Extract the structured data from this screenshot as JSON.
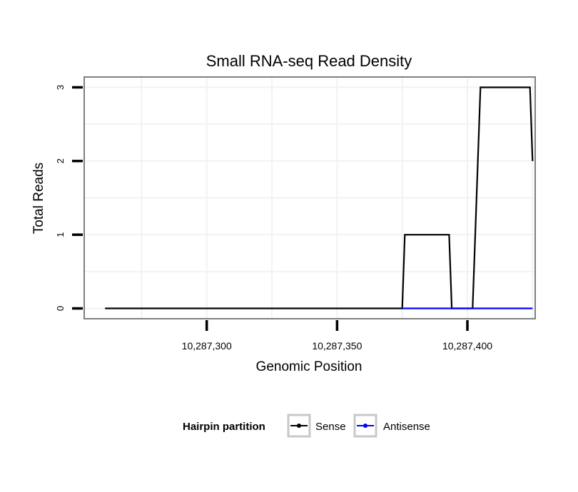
{
  "chart_data": {
    "type": "line",
    "title": "Small RNA-seq Read Density",
    "xlabel": "Genomic Position",
    "ylabel": "Total Reads",
    "xlim": [
      10287253,
      10287426
    ],
    "ylim": [
      -0.14,
      3.14
    ],
    "x_ticks": [
      10287300,
      10287350,
      10287400
    ],
    "x_tick_labels": [
      "10,287,300",
      "10,287,350",
      "10,287,400"
    ],
    "y_ticks": [
      0,
      1,
      2,
      3
    ],
    "y_tick_labels": [
      "0",
      "1",
      "2",
      "3"
    ],
    "grid": true,
    "legend": {
      "title": "Hairpin partition",
      "position": "bottom"
    },
    "series": [
      {
        "name": "Sense",
        "color": "#000000",
        "x": [
          10287261,
          10287375,
          10287376,
          10287393,
          10287394,
          10287402,
          10287403,
          10287405,
          10287424,
          10287425
        ],
        "y": [
          0,
          0,
          1,
          1,
          0,
          0,
          1,
          3,
          3,
          2
        ]
      },
      {
        "name": "Antisense",
        "color": "#0000ff",
        "x": [
          10287375,
          10287425
        ],
        "y": [
          0,
          0
        ]
      }
    ]
  }
}
